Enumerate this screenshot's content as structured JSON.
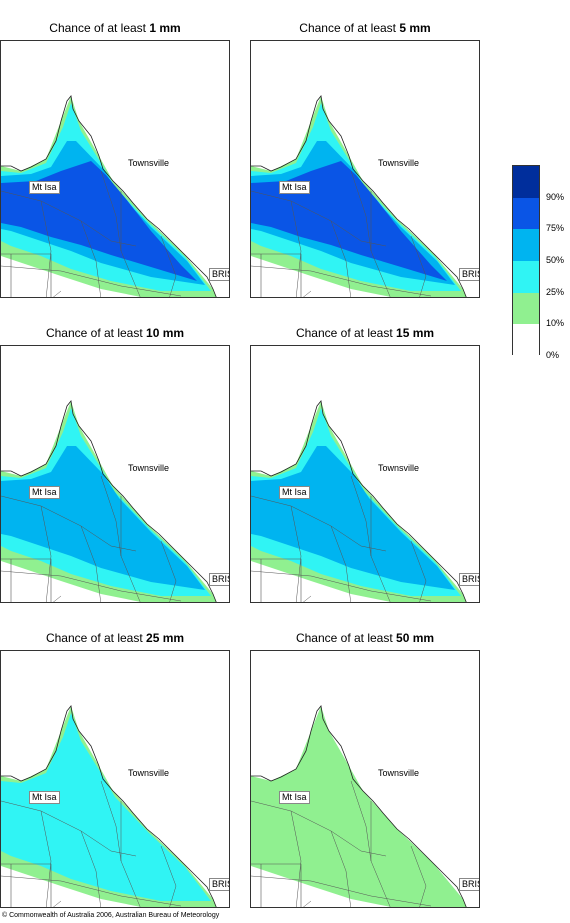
{
  "panels": [
    {
      "prefix": "Chance of at least ",
      "amount": "1 mm",
      "level": 4
    },
    {
      "prefix": "Chance of at least ",
      "amount": "5 mm",
      "level": 4
    },
    {
      "prefix": "Chance of at least ",
      "amount": "10 mm",
      "level": 3
    },
    {
      "prefix": "Chance of at least ",
      "amount": "15 mm",
      "level": 3
    },
    {
      "prefix": "Chance of at least ",
      "amount": "25 mm",
      "level": 2
    },
    {
      "prefix": "Chance of at least ",
      "amount": "50 mm",
      "level": 1
    }
  ],
  "places": {
    "townsville": "Townsville",
    "mt_isa": "Mt Isa",
    "bris": "BRIS"
  },
  "legend": {
    "labels": [
      "90%",
      "75%",
      "50%",
      "25%",
      "10%",
      "0%"
    ],
    "colors": [
      "#002e9c",
      "#0a55e6",
      "#00b4f0",
      "#30f4f4",
      "#90f090",
      "#ffffff"
    ]
  },
  "copyright": "© Commonwealth of Australia 2006, Australian Bureau of Meteorology"
}
